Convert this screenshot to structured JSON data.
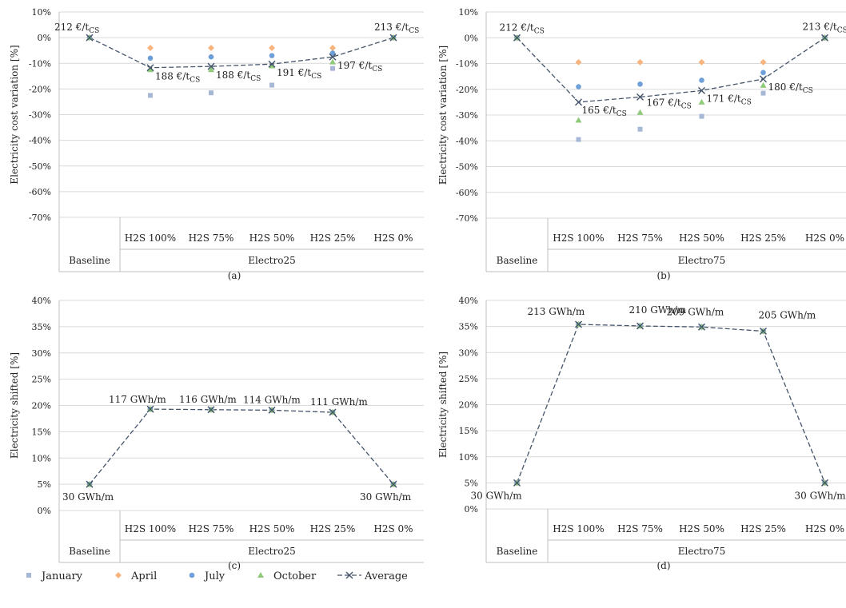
{
  "colors": {
    "January": "#a6b8d6",
    "April": "#f8b47e",
    "July": "#6f9fd8",
    "October": "#8fc97a",
    "Average": "#44546a",
    "grid": "#d9d9d9",
    "axis": "#bfbfbf"
  },
  "legend": [
    "January",
    "April",
    "July",
    "October",
    "Average"
  ],
  "chart_data": [
    {
      "type": "scatter",
      "caption": "(a)",
      "ylabel": "Electricity cost variation [%]",
      "ylim": [
        -70,
        10
      ],
      "yticks": [
        10,
        0,
        -10,
        -20,
        -30,
        -40,
        -50,
        -60,
        -70
      ],
      "ytick_labels": [
        "10%",
        "0%",
        "-10%",
        "-20%",
        "-30%",
        "-40%",
        "-50%",
        "-60%",
        "-70%"
      ],
      "categories": [
        "",
        "H2S 100%",
        "H2S 75%",
        "H2S 50%",
        "H2S 25%",
        "H2S 0%"
      ],
      "groups": [
        "Baseline",
        "Electro25"
      ],
      "series": [
        {
          "name": "January",
          "values": [
            0,
            -22.5,
            -21.5,
            -18.5,
            -12,
            0
          ]
        },
        {
          "name": "April",
          "values": [
            0,
            -4,
            -4,
            -4,
            -4,
            0
          ]
        },
        {
          "name": "July",
          "values": [
            0,
            -8,
            -7.5,
            -7,
            -6,
            0
          ]
        },
        {
          "name": "October",
          "values": [
            0,
            -12.5,
            -12.5,
            -11,
            -9.5,
            0
          ]
        },
        {
          "name": "Average",
          "values": [
            0,
            -11.7,
            -11.2,
            -10.3,
            -7.5,
            0
          ]
        }
      ],
      "labels": [
        {
          "i": 0,
          "base": "212 €/t",
          "sub": "CS"
        },
        {
          "i": 1,
          "base": "188 €/t",
          "sub": "CS"
        },
        {
          "i": 2,
          "base": "188 €/t",
          "sub": "CS"
        },
        {
          "i": 3,
          "base": "191 €/t",
          "sub": "CS"
        },
        {
          "i": 4,
          "base": "197 €/t",
          "sub": "CS"
        },
        {
          "i": 5,
          "base": "213 €/t",
          "sub": "CS"
        }
      ]
    },
    {
      "type": "scatter",
      "caption": "(b)",
      "ylabel": "Electricity cost variation [%]",
      "ylim": [
        -70,
        10
      ],
      "yticks": [
        10,
        0,
        -10,
        -20,
        -30,
        -40,
        -50,
        -60,
        -70
      ],
      "ytick_labels": [
        "10%",
        "0%",
        "-10%",
        "-20%",
        "-30%",
        "-40%",
        "-50%",
        "-60%",
        "-70%"
      ],
      "categories": [
        "",
        "H2S 100%",
        "H2S 75%",
        "H2S 50%",
        "H2S 25%",
        "H2S 0%"
      ],
      "groups": [
        "Baseline",
        "Electro75"
      ],
      "series": [
        {
          "name": "January",
          "values": [
            0,
            -39.5,
            -35.5,
            -30.5,
            -21.5,
            0
          ]
        },
        {
          "name": "April",
          "values": [
            0,
            -9.5,
            -9.5,
            -9.5,
            -9.5,
            0
          ]
        },
        {
          "name": "July",
          "values": [
            0,
            -19,
            -18,
            -16.5,
            -13.5,
            0
          ]
        },
        {
          "name": "October",
          "values": [
            0,
            -32,
            -29,
            -25,
            -18.5,
            0
          ]
        },
        {
          "name": "Average",
          "values": [
            0,
            -25,
            -23,
            -20.5,
            -16,
            0
          ]
        }
      ],
      "labels": [
        {
          "i": 0,
          "base": "212 €/t",
          "sub": "CS"
        },
        {
          "i": 1,
          "base": "165 €/t",
          "sub": "CS"
        },
        {
          "i": 2,
          "base": "167 €/t",
          "sub": "CS"
        },
        {
          "i": 3,
          "base": "171 €/t",
          "sub": "CS"
        },
        {
          "i": 4,
          "base": "180 €/t",
          "sub": "CS"
        },
        {
          "i": 5,
          "base": "213 €/t",
          "sub": "CS"
        }
      ]
    },
    {
      "type": "scatter",
      "caption": "(c)",
      "ylabel": "Electricity shifted [%]",
      "ylim": [
        0,
        40
      ],
      "yticks": [
        40,
        35,
        30,
        25,
        20,
        15,
        10,
        5,
        0
      ],
      "ytick_labels": [
        "40%",
        "35%",
        "30%",
        "25%",
        "20%",
        "15%",
        "10%",
        "5%",
        "0%"
      ],
      "categories": [
        "",
        "H2S 100%",
        "H2S 75%",
        "H2S 50%",
        "H2S 25%",
        "H2S 0%"
      ],
      "groups": [
        "Baseline",
        "Electro25"
      ],
      "series": [
        {
          "name": "January",
          "values": [
            5,
            19.3,
            19.2,
            19.1,
            18.7,
            5
          ]
        },
        {
          "name": "April",
          "values": [
            5,
            19.3,
            19.2,
            19.1,
            18.7,
            5
          ]
        },
        {
          "name": "July",
          "values": [
            5,
            19.3,
            19.2,
            19.1,
            18.7,
            5
          ]
        },
        {
          "name": "October",
          "values": [
            5,
            19.3,
            19.2,
            19.1,
            18.7,
            5
          ]
        },
        {
          "name": "Average",
          "values": [
            5,
            19.3,
            19.2,
            19.1,
            18.7,
            5
          ]
        }
      ],
      "labels": [
        {
          "i": 0,
          "base": "30 GWh/m",
          "sub": ""
        },
        {
          "i": 1,
          "base": "117 GWh/m",
          "sub": ""
        },
        {
          "i": 2,
          "base": "116 GWh/m",
          "sub": ""
        },
        {
          "i": 3,
          "base": "114 GWh/m",
          "sub": ""
        },
        {
          "i": 4,
          "base": "111 GWh/m",
          "sub": ""
        },
        {
          "i": 5,
          "base": "30 GWh/m",
          "sub": ""
        }
      ]
    },
    {
      "type": "scatter",
      "caption": "(d)",
      "ylabel": "Electricity shifted [%]",
      "ylim": [
        0,
        40
      ],
      "yticks": [
        40,
        35,
        30,
        25,
        20,
        15,
        10,
        5,
        0
      ],
      "ytick_labels": [
        "40%",
        "35%",
        "30%",
        "25%",
        "20%",
        "15%",
        "10%",
        "5%",
        "0%"
      ],
      "categories": [
        "",
        "H2S 100%",
        "H2S 75%",
        "H2S 50%",
        "H2S 25%",
        "H2S 0%"
      ],
      "groups": [
        "Baseline",
        "Electro75"
      ],
      "series": [
        {
          "name": "January",
          "values": [
            5,
            35.4,
            35.1,
            34.9,
            34.1,
            5
          ]
        },
        {
          "name": "April",
          "values": [
            5,
            35.4,
            35.1,
            34.9,
            34.1,
            5
          ]
        },
        {
          "name": "July",
          "values": [
            5,
            35.4,
            35.1,
            34.9,
            34.1,
            5
          ]
        },
        {
          "name": "October",
          "values": [
            5,
            35.4,
            35.1,
            34.9,
            34.1,
            5
          ]
        },
        {
          "name": "Average",
          "values": [
            5,
            35.4,
            35.1,
            34.9,
            34.1,
            5
          ]
        }
      ],
      "labels": [
        {
          "i": 0,
          "base": "30 GWh/m",
          "sub": ""
        },
        {
          "i": 1,
          "base": "213 GWh/m",
          "sub": ""
        },
        {
          "i": 2,
          "base": "210 GWh/m",
          "sub": ""
        },
        {
          "i": 3,
          "base": "209 GWh/m",
          "sub": ""
        },
        {
          "i": 4,
          "base": "205 GWh/m",
          "sub": ""
        },
        {
          "i": 5,
          "base": "30 GWh/m",
          "sub": ""
        }
      ]
    }
  ]
}
